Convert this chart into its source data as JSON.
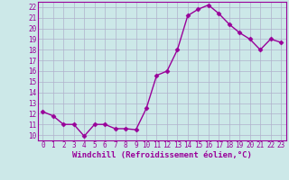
{
  "x": [
    0,
    1,
    2,
    3,
    4,
    5,
    6,
    7,
    8,
    9,
    10,
    11,
    12,
    13,
    14,
    15,
    16,
    17,
    18,
    19,
    20,
    21,
    22,
    23
  ],
  "y": [
    12.2,
    11.8,
    11.0,
    11.0,
    9.9,
    11.0,
    11.0,
    10.6,
    10.6,
    10.5,
    12.5,
    15.6,
    16.0,
    18.0,
    21.2,
    21.8,
    22.2,
    21.4,
    20.4,
    19.6,
    19.0,
    18.0,
    19.0,
    18.7
  ],
  "line_color": "#990099",
  "marker": "D",
  "markersize": 2.5,
  "linewidth": 1.0,
  "bg_color": "#cce8e8",
  "grid_color": "#b0b0cc",
  "xlabel": "Windchill (Refroidissement éolien,°C)",
  "xlabel_color": "#990099",
  "xlabel_fontsize": 6.5,
  "xlim": [
    -0.5,
    23.5
  ],
  "ylim": [
    9.5,
    22.5
  ],
  "yticks": [
    10,
    11,
    12,
    13,
    14,
    15,
    16,
    17,
    18,
    19,
    20,
    21,
    22
  ],
  "xticks": [
    0,
    1,
    2,
    3,
    4,
    5,
    6,
    7,
    8,
    9,
    10,
    11,
    12,
    13,
    14,
    15,
    16,
    17,
    18,
    19,
    20,
    21,
    22,
    23
  ],
  "tick_fontsize": 5.5,
  "tick_color": "#990099",
  "spine_color": "#990099"
}
